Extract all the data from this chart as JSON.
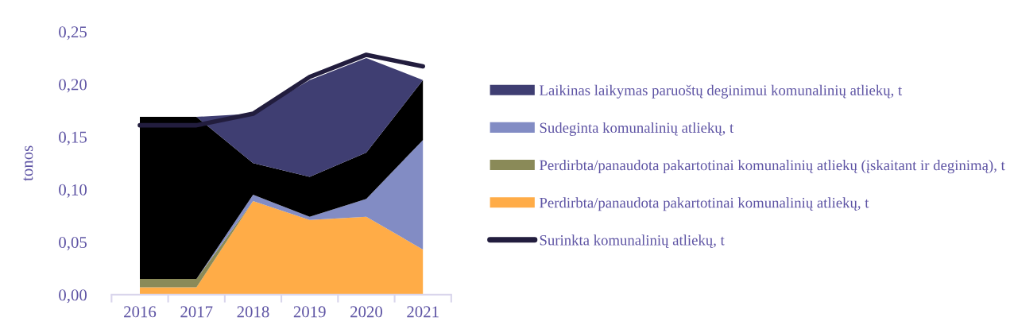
{
  "chart_data": {
    "type": "area",
    "stacked": true,
    "ylabel": "tonos",
    "categories": [
      "2016",
      "2017",
      "2018",
      "2019",
      "2020",
      "2021"
    ],
    "series": [
      {
        "name": "Perdirbta/panaudota pakartotinai komunalinių atliekų, t",
        "color": "#ffac47",
        "values": [
          0.007,
          0.007,
          0.089,
          0.071,
          0.074,
          0.043
        ]
      },
      {
        "name": "Perdirbta/panaudota pakartotinai komunalinių atliekų (įskaitant ir deginimą), t",
        "color": "#8a8a58",
        "values": [
          0.008,
          0.008,
          0.0,
          0.0,
          0.0,
          0.0
        ]
      },
      {
        "name": "Sudeginta komunalinių atliekų, t",
        "color": "#828cc4",
        "values": [
          0.0,
          0.0,
          0.006,
          0.003,
          0.017,
          0.104
        ]
      },
      {
        "color": "#000000",
        "values": [
          0.154,
          0.154,
          0.03,
          0.038,
          0.044,
          0.057
        ]
      },
      {
        "name": "Laikinas laikymas paruoštų deginimui komunalinių atliekų, t",
        "color": "#3f3e72",
        "values": [
          0.0,
          0.0,
          0.047,
          0.092,
          0.09,
          0.0
        ]
      },
      {
        "name": "Surinkta komunalinių atliekų, t",
        "type": "line",
        "color": "#221d3e",
        "values": [
          0.161,
          0.161,
          0.172,
          0.207,
          0.228,
          0.217
        ]
      }
    ],
    "ylim": [
      0,
      0.25
    ],
    "yticks": [
      {
        "value": 0,
        "label": "0,00"
      },
      {
        "value": 0.05,
        "label": "0,05"
      },
      {
        "value": 0.1,
        "label": "0,10"
      },
      {
        "value": 0.15,
        "label": "0,15"
      },
      {
        "value": 0.2,
        "label": "0,20"
      },
      {
        "value": 0.25,
        "label": "0,25"
      }
    ],
    "grid": false,
    "legend": "right"
  }
}
